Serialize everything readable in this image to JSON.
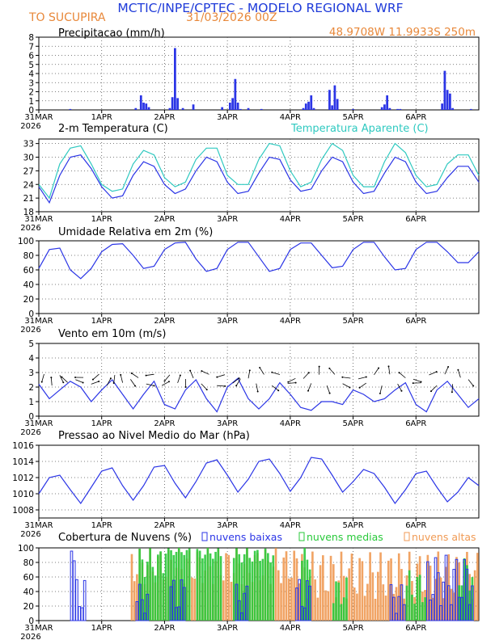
{
  "header": {
    "title": "MCTIC/INPE/CPTEC - MODELO REGIONAL WRF",
    "location": "TO SUCUPIRA",
    "run": "31/03/2026 00Z",
    "coords": "48.9708W 11.9933S 250m"
  },
  "colors": {
    "blue": "#2b35e6",
    "cyan": "#2fc9c0",
    "orange": "#f09a54",
    "green": "#29c93a",
    "title_blue": "#1f3bd9",
    "title_orange": "#e8883a"
  },
  "x_axis": {
    "labels": [
      "31MAR",
      "1APR",
      "2APR",
      "3APR",
      "4APR",
      "5APR",
      "6APR"
    ],
    "year": "2026",
    "hours": [
      0,
      168
    ]
  },
  "chart_data": [
    {
      "type": "bar",
      "title": "Precipitacao (mm/h)",
      "ylim": [
        0,
        8
      ],
      "yticks": [
        "0",
        "1",
        "2",
        "3",
        "4",
        "5",
        "6",
        "7",
        "8"
      ],
      "x": [
        12,
        37,
        39,
        40,
        41,
        42,
        50,
        51,
        52,
        53,
        55,
        59,
        70,
        73,
        74,
        75,
        76,
        77,
        80,
        85,
        101,
        102,
        103,
        104,
        105,
        111,
        112,
        113,
        114,
        120,
        131,
        132,
        133,
        134,
        137,
        138,
        154,
        155,
        156,
        157,
        158,
        165
      ],
      "values": [
        0.1,
        0.2,
        1.6,
        0.8,
        0.7,
        0.3,
        0.2,
        1.4,
        6.8,
        1.3,
        0.2,
        0.6,
        0.3,
        0.8,
        1.3,
        3.4,
        0.8,
        0.1,
        0.2,
        0.1,
        0.2,
        0.7,
        0.9,
        1.6,
        0.2,
        2.2,
        0.5,
        2.7,
        1.2,
        0.1,
        0.3,
        0.6,
        1.6,
        0.2,
        0.1,
        0.1,
        0.7,
        4.3,
        2.2,
        1.8,
        0.2,
        0.1
      ]
    },
    {
      "type": "line",
      "title": "2-m Temperatura (C)",
      "title2": "Temperatura Aparente (C)",
      "ylim": [
        18,
        34
      ],
      "yticks": [
        "18",
        "21",
        "24",
        "27",
        "30",
        "33"
      ],
      "series": [
        {
          "name": "2-m Temperatura (C)",
          "x": [
            0,
            4,
            8,
            12,
            16,
            20,
            24,
            28,
            32,
            36,
            40,
            44,
            48,
            52,
            56,
            60,
            64,
            68,
            72,
            76,
            80,
            84,
            88,
            92,
            96,
            100,
            104,
            108,
            112,
            116,
            120,
            124,
            128,
            132,
            136,
            140,
            144,
            148,
            152,
            156,
            160,
            164,
            168
          ],
          "values": [
            23.5,
            20.0,
            26.0,
            30.0,
            30.5,
            27.5,
            23.5,
            21.0,
            21.5,
            26.0,
            29.0,
            28.0,
            24.0,
            22.0,
            23.0,
            27.0,
            30.0,
            29.0,
            24.5,
            22.0,
            22.5,
            26.5,
            30.0,
            29.5,
            25.0,
            22.5,
            23.0,
            27.0,
            30.0,
            29.0,
            24.5,
            22.0,
            22.5,
            26.5,
            30.0,
            29.0,
            24.5,
            22.0,
            22.5,
            25.5,
            28.0,
            28.0,
            24.5
          ]
        },
        {
          "name": "Temperatura Aparente (C)",
          "x": [
            0,
            4,
            8,
            12,
            16,
            20,
            24,
            28,
            32,
            36,
            40,
            44,
            48,
            52,
            56,
            60,
            64,
            68,
            72,
            76,
            80,
            84,
            88,
            92,
            96,
            100,
            104,
            108,
            112,
            116,
            120,
            124,
            128,
            132,
            136,
            140,
            144,
            148,
            152,
            156,
            160,
            164,
            168
          ],
          "values": [
            24.0,
            21.0,
            28.5,
            32.0,
            32.5,
            28.5,
            24.0,
            22.5,
            23.0,
            28.5,
            31.5,
            30.5,
            25.5,
            23.5,
            24.5,
            29.5,
            32.0,
            32.0,
            26.0,
            24.0,
            24.0,
            29.5,
            33.0,
            32.5,
            27.0,
            23.5,
            24.5,
            29.5,
            33.0,
            31.5,
            26.0,
            23.5,
            23.5,
            29.0,
            33.0,
            31.0,
            26.0,
            23.5,
            24.0,
            28.5,
            30.5,
            30.5,
            26.0
          ]
        }
      ]
    },
    {
      "type": "line",
      "title": "Umidade Relativa em 2m (%)",
      "ylim": [
        0,
        100
      ],
      "yticks": [
        "0",
        "20",
        "40",
        "60",
        "80",
        "100"
      ],
      "series": [
        {
          "name": "Umidade Relativa em 2m (%)",
          "x": [
            0,
            4,
            8,
            12,
            16,
            20,
            24,
            28,
            32,
            36,
            40,
            44,
            48,
            52,
            56,
            60,
            64,
            68,
            72,
            76,
            80,
            84,
            88,
            92,
            96,
            100,
            104,
            108,
            112,
            116,
            120,
            124,
            128,
            132,
            136,
            140,
            144,
            148,
            152,
            156,
            160,
            164,
            168
          ],
          "values": [
            62,
            88,
            90,
            60,
            48,
            62,
            85,
            95,
            96,
            80,
            62,
            65,
            88,
            97,
            98,
            75,
            58,
            62,
            88,
            98,
            98,
            78,
            58,
            62,
            88,
            97,
            97,
            80,
            63,
            65,
            88,
            98,
            98,
            78,
            60,
            62,
            88,
            98,
            98,
            85,
            70,
            70,
            85
          ]
        }
      ]
    },
    {
      "type": "line",
      "title": "Vento em 10m (m/s)",
      "ylim": [
        0,
        5
      ],
      "yticks": [
        "0",
        "1",
        "2",
        "3",
        "4",
        "5"
      ],
      "series": [
        {
          "name": "Vento em 10m (m/s)",
          "x": [
            0,
            4,
            8,
            12,
            16,
            20,
            24,
            28,
            32,
            36,
            40,
            44,
            48,
            52,
            56,
            60,
            64,
            68,
            72,
            76,
            80,
            84,
            88,
            92,
            96,
            100,
            104,
            108,
            112,
            116,
            120,
            124,
            128,
            132,
            136,
            140,
            144,
            148,
            152,
            156,
            160,
            164,
            168
          ],
          "values": [
            2.2,
            1.2,
            1.8,
            2.4,
            2.0,
            1.0,
            1.8,
            2.5,
            1.5,
            0.5,
            1.5,
            2.4,
            0.8,
            0.5,
            1.8,
            2.5,
            1.2,
            0.3,
            2.0,
            2.6,
            1.2,
            0.5,
            1.2,
            2.3,
            1.5,
            0.6,
            0.4,
            1.0,
            1.0,
            0.8,
            1.8,
            1.5,
            1.0,
            1.2,
            1.8,
            2.3,
            0.8,
            0.3,
            1.8,
            2.4,
            1.5,
            0.6,
            1.2
          ]
        }
      ]
    },
    {
      "type": "line",
      "title": "Pressao ao Nivel Medio do Mar (hPa)",
      "ylim": [
        1007,
        1016
      ],
      "yticks": [
        "1008",
        "1010",
        "1012",
        "1014",
        "1016"
      ],
      "series": [
        {
          "name": "Pressao ao Nivel Medio do Mar (hPa)",
          "x": [
            0,
            4,
            8,
            12,
            16,
            20,
            24,
            28,
            32,
            36,
            40,
            44,
            48,
            52,
            56,
            60,
            64,
            68,
            72,
            76,
            80,
            84,
            88,
            92,
            96,
            100,
            104,
            108,
            112,
            116,
            120,
            124,
            128,
            132,
            136,
            140,
            144,
            148,
            152,
            156,
            160,
            164,
            168
          ],
          "values": [
            1010.0,
            1012.0,
            1012.3,
            1010.5,
            1008.8,
            1010.8,
            1012.8,
            1013.2,
            1011.0,
            1009.2,
            1011.0,
            1013.3,
            1013.5,
            1011.3,
            1009.5,
            1011.5,
            1013.8,
            1014.2,
            1012.3,
            1010.2,
            1011.8,
            1014.0,
            1014.3,
            1012.5,
            1010.3,
            1012.0,
            1014.5,
            1014.3,
            1012.3,
            1010.2,
            1011.5,
            1013.0,
            1012.5,
            1010.8,
            1008.8,
            1010.5,
            1012.5,
            1012.8,
            1010.8,
            1009.0,
            1010.2,
            1012.0,
            1011.0
          ]
        }
      ]
    },
    {
      "type": "bar",
      "title": "Cobertura de Nuvens (%)",
      "legend": [
        "nuvens baixas",
        "nuvens medias",
        "nuvens altas"
      ],
      "ylim": [
        0,
        100
      ],
      "yticks": [
        "0",
        "20",
        "40",
        "60",
        "80",
        "100"
      ],
      "series": [
        {
          "name": "nuvens altas",
          "ranges": [
            [
              35,
              100,
              50,
              100
            ],
            [
              100,
              168,
              30,
              95
            ]
          ]
        },
        {
          "name": "nuvens medias",
          "ranges": [
            [
              38,
              48,
              60,
              100
            ],
            [
              48,
              58,
              90,
              100
            ],
            [
              60,
              70,
              85,
              100
            ],
            [
              74,
              90,
              80,
              100
            ],
            [
              100,
              104,
              70,
              100
            ],
            [
              112,
              118,
              20,
              60
            ],
            [
              140,
              148,
              20,
              70
            ],
            [
              160,
              166,
              40,
              90
            ]
          ]
        },
        {
          "name": "nuvens baixas",
          "ranges": [
            [
              12,
              14,
              40,
              100
            ],
            [
              14,
              18,
              10,
              60
            ],
            [
              37,
              42,
              10,
              50
            ],
            [
              50,
              56,
              10,
              60
            ],
            [
              75,
              80,
              10,
              50
            ],
            [
              98,
              104,
              10,
              60
            ],
            [
              134,
              140,
              10,
              50
            ],
            [
              148,
              166,
              20,
              90
            ]
          ]
        }
      ]
    }
  ]
}
